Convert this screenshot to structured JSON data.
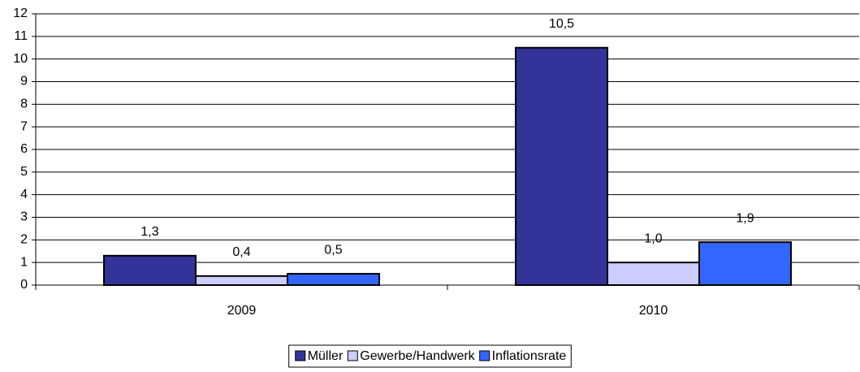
{
  "chart_data": {
    "type": "bar",
    "categories": [
      "2009",
      "2010"
    ],
    "series": [
      {
        "name": "Müller",
        "color": "#333399",
        "values": [
          1.3,
          10.5
        ],
        "value_labels": [
          "1,3",
          "10,5"
        ]
      },
      {
        "name": "Gewerbe/Handwerk",
        "color": "#ccccff",
        "values": [
          0.4,
          1.0
        ],
        "value_labels": [
          "0,4",
          "1,0"
        ]
      },
      {
        "name": "Inflationsrate",
        "color": "#3366ff",
        "values": [
          0.5,
          1.9
        ],
        "value_labels": [
          "0,5",
          "1,9"
        ]
      }
    ],
    "ylim": [
      0,
      12
    ],
    "yticks": [
      0,
      1,
      2,
      3,
      4,
      5,
      6,
      7,
      8,
      9,
      10,
      11,
      12
    ],
    "grid": true,
    "legend": "bottom"
  }
}
